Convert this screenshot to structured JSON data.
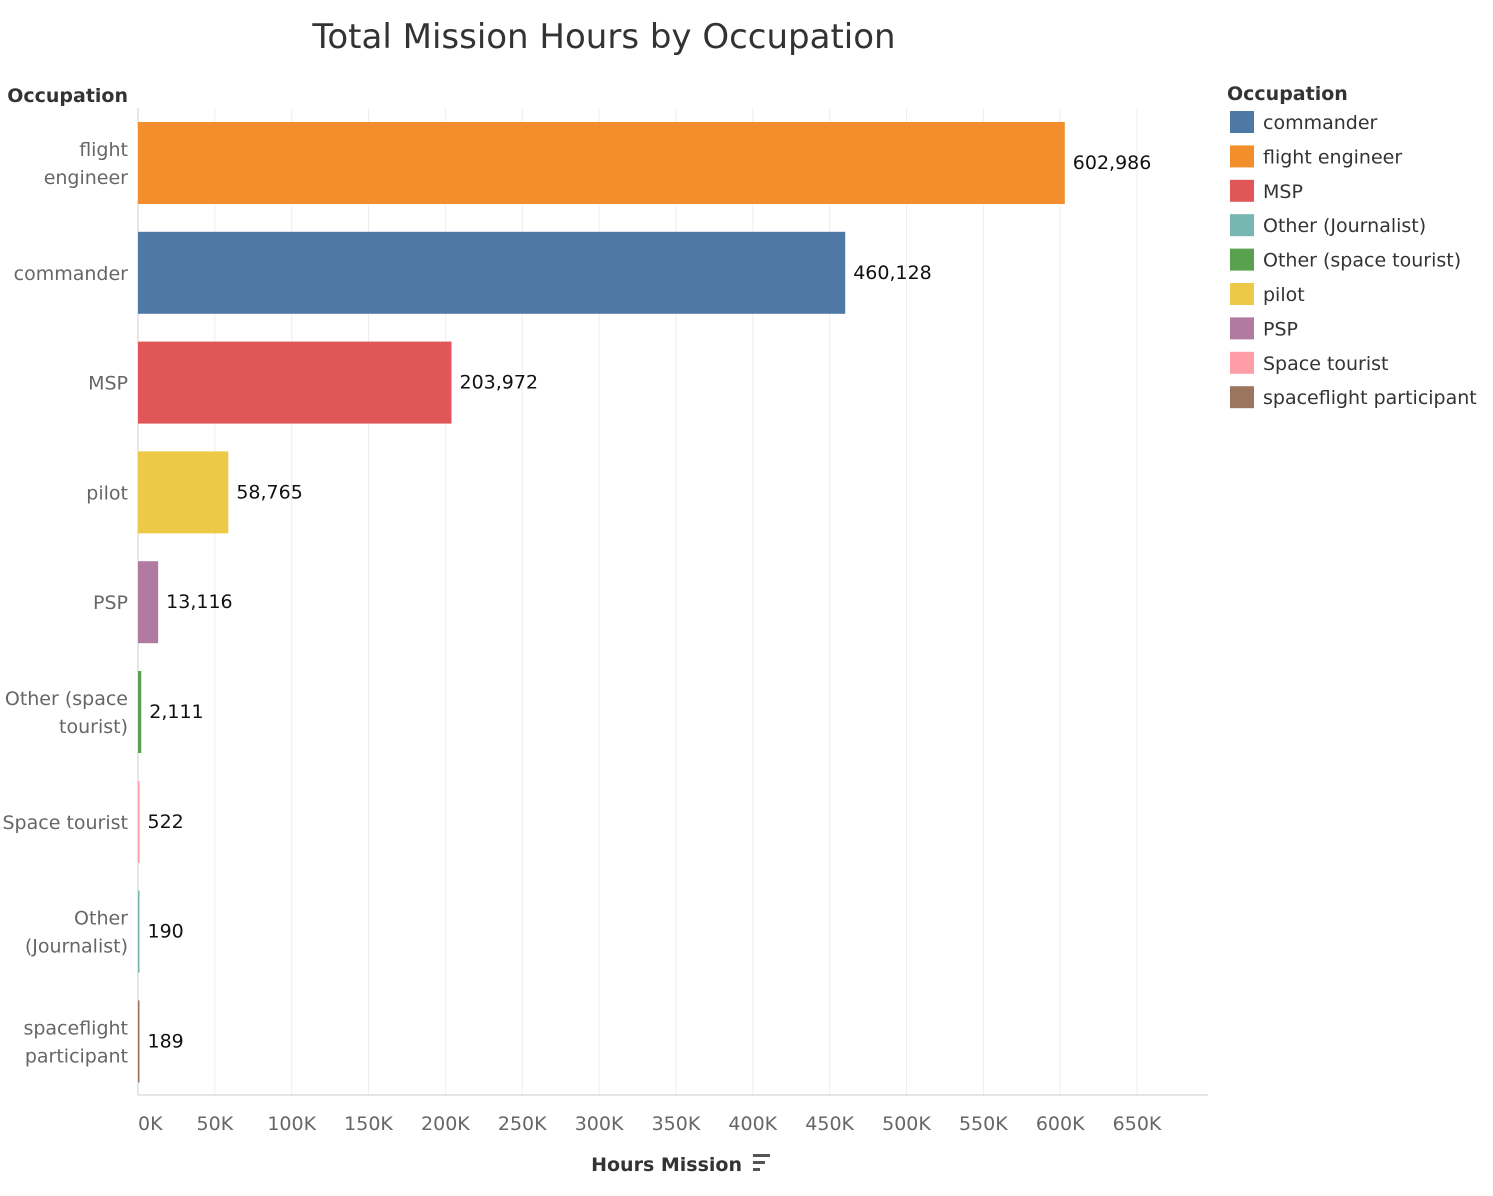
{
  "chart_data": {
    "type": "bar",
    "orientation": "horizontal",
    "title": "Total Mission Hours by Occupation",
    "ylabel": "Occupation",
    "xlabel": "Hours Mission",
    "xlim": [
      0,
      700000
    ],
    "xticks": [
      0,
      50000,
      100000,
      150000,
      200000,
      250000,
      300000,
      350000,
      400000,
      450000,
      500000,
      550000,
      600000,
      650000
    ],
    "xtick_labels": [
      "0K",
      "50K",
      "100K",
      "150K",
      "200K",
      "250K",
      "300K",
      "350K",
      "400K",
      "450K",
      "500K",
      "550K",
      "600K",
      "650K"
    ],
    "grid": true,
    "sort": "descending",
    "categories": [
      [
        "flight",
        "engineer"
      ],
      [
        "commander"
      ],
      [
        "MSP"
      ],
      [
        "pilot"
      ],
      [
        "PSP"
      ],
      [
        "Other (space",
        "tourist)"
      ],
      [
        "Space tourist"
      ],
      [
        "Other",
        "(Journalist)"
      ],
      [
        "spaceflight",
        "participant"
      ]
    ],
    "values": [
      602986,
      460128,
      203972,
      58765,
      13116,
      2111,
      522,
      190,
      189
    ],
    "value_labels": [
      "602,986",
      "460,128",
      "203,972",
      "58,765",
      "13,116",
      "2,111",
      "522",
      "190",
      "189"
    ],
    "colors": [
      "#f28e2b",
      "#4e79a7",
      "#e15759",
      "#edc948",
      "#b07aa1",
      "#59a14f",
      "#ff9da7",
      "#76b7b2",
      "#9c755f"
    ],
    "legend": {
      "title": "Occupation",
      "position": "right",
      "items": [
        {
          "label": "commander",
          "color": "#4e79a7"
        },
        {
          "label": "flight engineer",
          "color": "#f28e2b"
        },
        {
          "label": "MSP",
          "color": "#e15759"
        },
        {
          "label": "Other (Journalist)",
          "color": "#76b7b2"
        },
        {
          "label": "Other (space tourist)",
          "color": "#59a14f"
        },
        {
          "label": "pilot",
          "color": "#edc948"
        },
        {
          "label": "PSP",
          "color": "#b07aa1"
        },
        {
          "label": "Space tourist",
          "color": "#ff9da7"
        },
        {
          "label": "spaceflight participant",
          "color": "#9c755f"
        }
      ]
    },
    "sort_icon": "sort-descending-icon"
  }
}
